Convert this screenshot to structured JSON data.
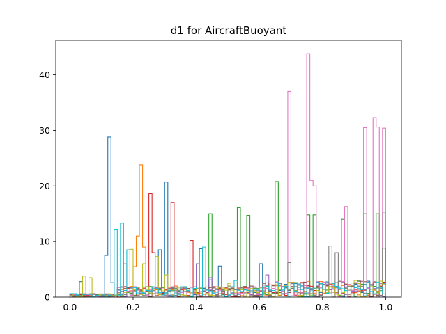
{
  "chart_data": {
    "type": "histogram-step",
    "title": "d1 for AircraftBuoyant",
    "xlabel": "",
    "ylabel": "",
    "xlim": [
      -0.045,
      1.05
    ],
    "ylim": [
      0,
      46.2
    ],
    "xticks": [
      {
        "value": 0.0,
        "label": "0.0"
      },
      {
        "value": 0.2,
        "label": "0.2"
      },
      {
        "value": 0.4,
        "label": "0.4"
      },
      {
        "value": 0.6,
        "label": "0.6"
      },
      {
        "value": 0.8,
        "label": "0.8"
      },
      {
        "value": 1.0,
        "label": "1.0"
      }
    ],
    "yticks": [
      {
        "value": 0,
        "label": "0"
      },
      {
        "value": 10,
        "label": "10"
      },
      {
        "value": 20,
        "label": "20"
      },
      {
        "value": 30,
        "label": "30"
      },
      {
        "value": 40,
        "label": "40"
      }
    ],
    "grid": false,
    "legend": "none",
    "bin_width": 0.01,
    "series": [
      {
        "color": "#1f77b4",
        "peaks": [
          [
            0.03,
            2.8
          ],
          [
            0.11,
            7.5
          ],
          [
            0.12,
            28.8
          ],
          [
            0.13,
            2.6
          ],
          [
            0.28,
            8.5
          ],
          [
            0.3,
            20.7
          ],
          [
            0.41,
            8.7
          ],
          [
            0.44,
            3.1
          ],
          [
            0.47,
            5.6
          ],
          [
            0.6,
            6.0
          ]
        ]
      },
      {
        "color": "#ff7f0e",
        "peaks": [
          [
            0.22,
            23.8
          ],
          [
            0.21,
            11.0
          ],
          [
            0.23,
            9.0
          ],
          [
            0.2,
            5.5
          ],
          [
            0.33,
            2.0
          ]
        ]
      },
      {
        "color": "#2ca02c",
        "peaks": [
          [
            0.44,
            15.0
          ],
          [
            0.53,
            16.1
          ],
          [
            0.56,
            14.7
          ],
          [
            0.65,
            20.8
          ],
          [
            0.75,
            14.8
          ],
          [
            0.77,
            14.8
          ],
          [
            0.86,
            14.0
          ],
          [
            0.93,
            15.0
          ],
          [
            0.97,
            15.0
          ],
          [
            0.99,
            15.3
          ]
        ]
      },
      {
        "color": "#d62728",
        "peaks": [
          [
            0.25,
            18.6
          ],
          [
            0.32,
            17.0
          ],
          [
            0.38,
            10.2
          ],
          [
            0.26,
            8.0
          ]
        ]
      },
      {
        "color": "#9467bd",
        "peaks": [
          [
            0.4,
            6.0
          ],
          [
            0.44,
            3.5
          ],
          [
            0.62,
            4.0
          ],
          [
            0.91,
            3.0
          ]
        ]
      },
      {
        "color": "#8c564b",
        "peaks": [
          [
            0.57,
            2.0
          ],
          [
            0.7,
            1.5
          ],
          [
            0.82,
            1.8
          ]
        ]
      },
      {
        "color": "#e377c2",
        "peaks": [
          [
            0.69,
            37.0
          ],
          [
            0.75,
            43.8
          ],
          [
            0.76,
            21.0
          ],
          [
            0.77,
            20.0
          ],
          [
            0.87,
            16.3
          ],
          [
            0.93,
            30.5
          ],
          [
            0.96,
            32.3
          ],
          [
            0.97,
            30.6
          ],
          [
            1.0,
            30.4
          ],
          [
            0.17,
            6.0
          ]
        ]
      },
      {
        "color": "#7f7f7f",
        "peaks": [
          [
            0.69,
            6.2
          ],
          [
            0.82,
            9.2
          ],
          [
            0.84,
            8.0
          ],
          [
            1.0,
            8.8
          ],
          [
            0.5,
            2.0
          ]
        ]
      },
      {
        "color": "#bcbd22",
        "peaks": [
          [
            0.04,
            3.8
          ],
          [
            0.06,
            3.5
          ],
          [
            0.19,
            8.6
          ],
          [
            0.23,
            6.0
          ],
          [
            0.27,
            7.3
          ],
          [
            0.3,
            4.0
          ],
          [
            0.5,
            2.5
          ],
          [
            0.9,
            3.0
          ]
        ]
      },
      {
        "color": "#17becf",
        "peaks": [
          [
            0.14,
            12.2
          ],
          [
            0.16,
            13.3
          ],
          [
            0.18,
            8.5
          ],
          [
            0.42,
            9.0
          ],
          [
            0.52,
            3.0
          ],
          [
            0.7,
            2.5
          ]
        ]
      }
    ]
  }
}
